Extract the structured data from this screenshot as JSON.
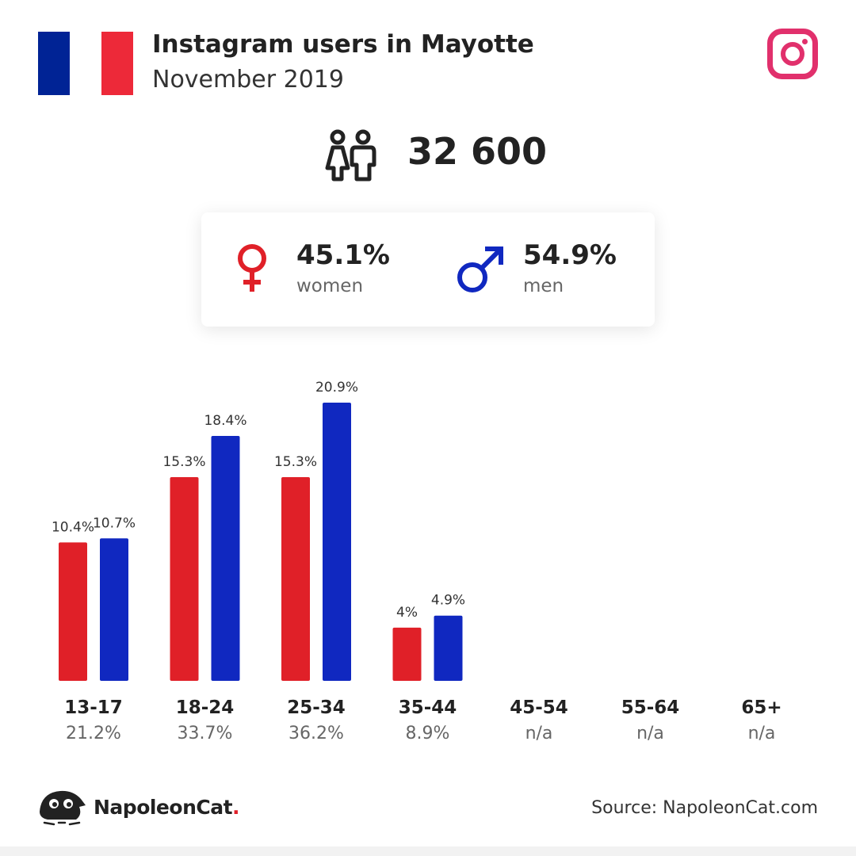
{
  "header": {
    "title": "Instagram users in Mayotte",
    "subtitle": "November 2019"
  },
  "flag_colors": [
    "#002395",
    "#ffffff",
    "#ed2939"
  ],
  "icons": {
    "flag": "france-flag-icon",
    "platform": "instagram-icon",
    "users": "users-icon",
    "women": "female-symbol-icon",
    "men": "male-symbol-icon",
    "brand": "napoleoncat-logo-icon"
  },
  "total": "32 600",
  "gender": {
    "women": {
      "value": "45.1%",
      "label": "women"
    },
    "men": {
      "value": "54.9%",
      "label": "men"
    }
  },
  "colors": {
    "women": "#e02028",
    "men": "#1028c0",
    "instagram": "#e1306c"
  },
  "chart_data": {
    "type": "bar",
    "categories": [
      "13-17",
      "18-24",
      "25-34",
      "35-44",
      "45-54",
      "55-64",
      "65+"
    ],
    "category_totals": [
      "21.2%",
      "33.7%",
      "36.2%",
      "8.9%",
      "n/a",
      "n/a",
      "n/a"
    ],
    "series": [
      {
        "key": "women",
        "values": [
          10.4,
          15.3,
          15.3,
          4.0,
          null,
          null,
          null
        ],
        "labels": [
          "10.4%",
          "15.3%",
          "15.3%",
          "4%",
          "",
          "",
          ""
        ]
      },
      {
        "key": "men",
        "values": [
          10.7,
          18.4,
          20.9,
          4.9,
          null,
          null,
          null
        ],
        "labels": [
          "10.7%",
          "18.4%",
          "20.9%",
          "4.9%",
          "",
          "",
          ""
        ]
      }
    ],
    "ylim": [
      0,
      20.9
    ],
    "grid": false
  },
  "footer": {
    "brand": "NapoleonCat",
    "brand_dot": ".",
    "source": "Source: NapoleonCat.com"
  }
}
